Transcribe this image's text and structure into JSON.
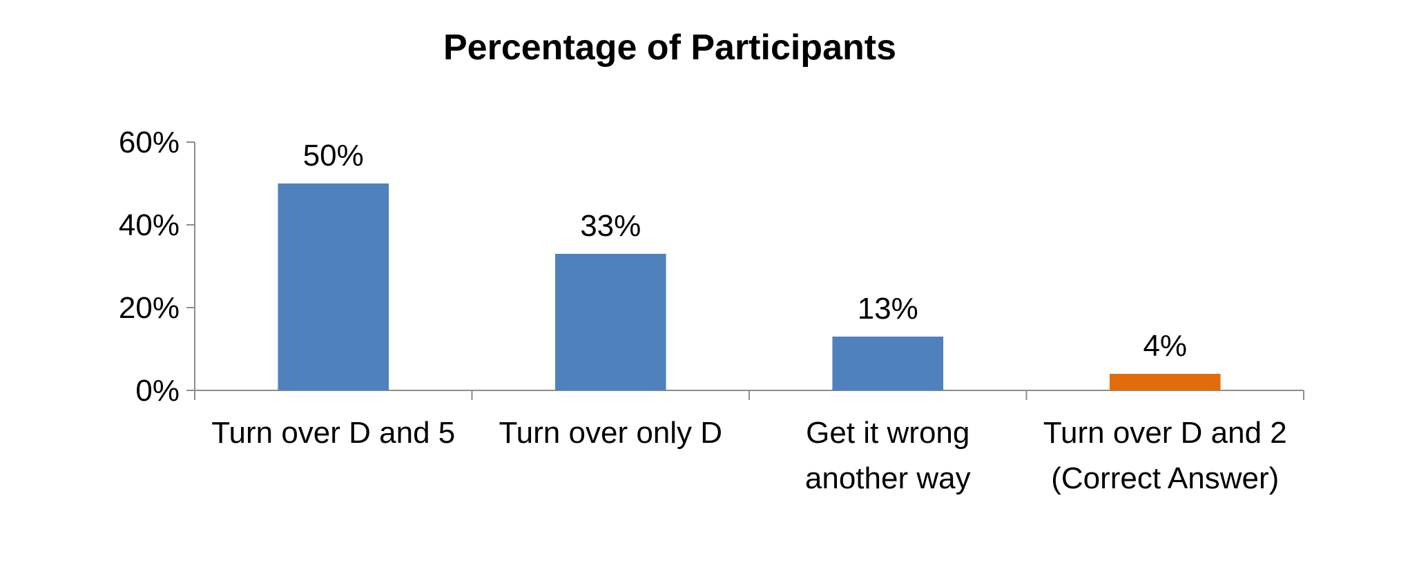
{
  "chart_data": {
    "type": "bar",
    "title": "Percentage of Participants",
    "categories": [
      [
        "Turn over D and 5"
      ],
      [
        "Turn over only D"
      ],
      [
        "Get it wrong",
        "another way"
      ],
      [
        "Turn over D and 2",
        "(Correct Answer)"
      ]
    ],
    "values": [
      50,
      33,
      13,
      4
    ],
    "data_labels": [
      "50%",
      "33%",
      "13%",
      "4%"
    ],
    "bar_colors": [
      "#4f81bd",
      "#4f81bd",
      "#4f81bd",
      "#e36c0a"
    ],
    "ylim": [
      0,
      60
    ],
    "yticks": [
      0,
      20,
      40,
      60
    ],
    "ytick_labels": [
      "0%",
      "20%",
      "40%",
      "60%"
    ],
    "xlabel": "",
    "ylabel": "",
    "grid": false,
    "legend": "none"
  }
}
